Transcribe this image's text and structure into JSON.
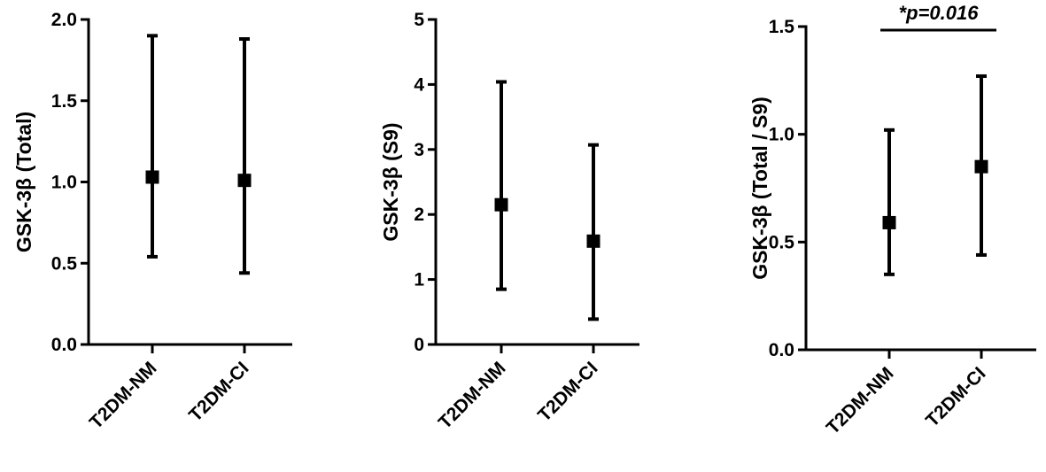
{
  "chart_data": [
    {
      "type": "scatter",
      "title": "",
      "xlabel": "",
      "ylabel": "GSK-3β (Total)",
      "ylim": [
        0,
        2.0
      ],
      "yticks": [
        "0.0",
        "0.5",
        "1.0",
        "1.5",
        "2.0"
      ],
      "categories": [
        "T2DM-NM",
        "T2DM-CI"
      ],
      "series": [
        {
          "values": [
            1.03,
            1.01
          ],
          "err_low": [
            0.54,
            0.44
          ],
          "err_high": [
            1.9,
            1.88
          ]
        }
      ],
      "grid": false,
      "annotation": null
    },
    {
      "type": "scatter",
      "title": "",
      "xlabel": "",
      "ylabel": "GSK-3β (S9)",
      "ylim": [
        0,
        5
      ],
      "yticks": [
        "0",
        "1",
        "2",
        "3",
        "4",
        "5"
      ],
      "categories": [
        "T2DM-NM",
        "T2DM-CI"
      ],
      "series": [
        {
          "values": [
            2.15,
            1.59
          ],
          "err_low": [
            0.85,
            0.39
          ],
          "err_high": [
            4.04,
            3.07
          ]
        }
      ],
      "grid": false,
      "annotation": null
    },
    {
      "type": "scatter",
      "title": "",
      "xlabel": "",
      "ylabel": "GSK-3β (Total / S9)",
      "ylim": [
        0,
        1.5
      ],
      "yticks": [
        "0.0",
        "0.5",
        "1.0",
        "1.5"
      ],
      "categories": [
        "T2DM-NM",
        "T2DM-CI"
      ],
      "series": [
        {
          "values": [
            0.59,
            0.85
          ],
          "err_low": [
            0.35,
            0.44
          ],
          "err_high": [
            1.02,
            1.27
          ]
        }
      ],
      "grid": false,
      "annotation": {
        "text": "*p=0.016",
        "between": [
          "T2DM-NM",
          "T2DM-CI"
        ]
      }
    }
  ]
}
